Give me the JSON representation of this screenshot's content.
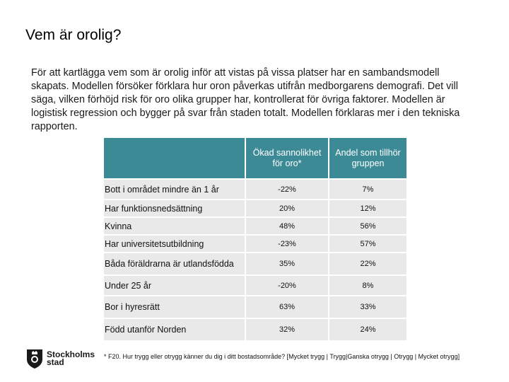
{
  "title": "Vem är orolig?",
  "intro": "För att kartlägga vem som är orolig inför att vistas på vissa platser har en sambandsmodell skapats. Modellen försöker förklara hur oron påverkas utifrån medborgarens demografi. Det vill säga, vilken förhöjd risk för oro olika grupper har, kontrollerat för övriga faktorer. Modellen är logistisk regression och bygger på svar från staden totalt. Modellen förklaras mer i den tekniska rapporten.",
  "table": {
    "headers": [
      "",
      "Ökad sannolikhet för oro*",
      "Andel som tillhör gruppen"
    ],
    "rows": [
      {
        "label": "Bott i området mindre än 1 år",
        "increase": "-22%",
        "share": "7%"
      },
      {
        "label": "Har funktionsnedsättning",
        "increase": "20%",
        "share": "12%"
      },
      {
        "label": "Kvinna",
        "increase": "48%",
        "share": "56%"
      },
      {
        "label": "Har universitetsutbildning",
        "increase": "-23%",
        "share": "57%"
      },
      {
        "label": "Båda föräldrarna är utlandsfödda",
        "increase": "35%",
        "share": "22%"
      },
      {
        "label": "Under 25 år",
        "increase": "-20%",
        "share": "8%"
      },
      {
        "label": "Bor i hyresrätt",
        "increase": "63%",
        "share": "33%"
      },
      {
        "label": "Född utanför Norden",
        "increase": "32%",
        "share": "24%"
      }
    ]
  },
  "footnote": "* F20. Hur trygg eller otrygg känner du dig i ditt bostadsområde? [Mycket trygg | Trygg|Ganska otrygg | Otrygg | Mycket otrygg]",
  "logo": {
    "line1": "Stockholms",
    "line2": "stad",
    "icon": "stockholm-crest-icon"
  },
  "colors": {
    "header_bg": "#3d8a97",
    "row_bg": "#e9e9e9"
  }
}
